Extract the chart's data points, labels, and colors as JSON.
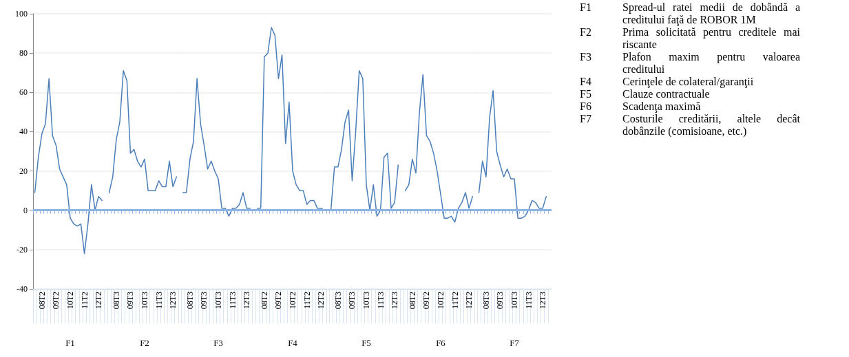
{
  "chart_data": [
    {
      "type": "line",
      "xlabel": "F1",
      "categories": [
        null,
        null,
        "08T2",
        null,
        null,
        null,
        "09T2",
        null,
        null,
        null,
        "10T2",
        null,
        null,
        null,
        "11T2",
        null,
        null,
        null,
        "12T2",
        null,
        null
      ],
      "values": [
        9,
        27,
        39,
        44,
        67,
        38,
        33,
        21,
        17,
        13,
        -4,
        -7,
        -8,
        -7,
        -22,
        -7,
        13,
        0,
        7,
        5,
        null
      ],
      "color": "#4a7ebb",
      "ylim": [
        -40,
        100
      ],
      "yticks": [
        -40,
        -20,
        0,
        20,
        40,
        60,
        80,
        100
      ],
      "grid": "y",
      "ref_lines": [
        {
          "axis": "y",
          "value": 0,
          "color": "#8eb4e3"
        }
      ]
    },
    {
      "type": "line",
      "xlabel": "F2",
      "categories": [
        null,
        null,
        "08T3",
        null,
        null,
        null,
        "09T3",
        null,
        null,
        null,
        "10T3",
        null,
        null,
        null,
        "11T3",
        null,
        null,
        null,
        "12T3",
        null,
        null
      ],
      "values": [
        9,
        17,
        36,
        45,
        71,
        66,
        29,
        31,
        25,
        22,
        26,
        10,
        10,
        10,
        15,
        12,
        12,
        25,
        12,
        17,
        null
      ],
      "color": "#4a7ebb",
      "ylim": [
        -40,
        100
      ],
      "yticks": [
        -40,
        -20,
        0,
        20,
        40,
        60,
        80,
        100
      ],
      "grid": "y",
      "ref_lines": [
        {
          "axis": "y",
          "value": 0,
          "color": "#8eb4e3"
        }
      ],
      "tick_labels": "x"
    },
    {
      "type": "line",
      "xlabel": "F3",
      "categories": [
        null,
        null,
        "08T3",
        null,
        null,
        null,
        "09T3",
        null,
        null,
        null,
        "10T3",
        null,
        null,
        null,
        "11T3",
        null,
        null,
        null,
        "12T3",
        null,
        null
      ],
      "values": [
        9,
        9,
        26,
        35,
        67,
        44,
        33,
        21,
        25,
        20,
        16,
        1,
        1,
        -3,
        1,
        1,
        3,
        9,
        1,
        1,
        null
      ],
      "color": "#4a7ebb",
      "ylim": [
        -40,
        100
      ],
      "yticks": [
        -40,
        -20,
        0,
        20,
        40,
        60,
        80,
        100
      ],
      "grid": "y",
      "ref_lines": [
        {
          "axis": "y",
          "value": 0,
          "color": "#8eb4e3"
        }
      ],
      "tick_labels": "x"
    },
    {
      "type": "line",
      "xlabel": "F4",
      "categories": [
        null,
        null,
        "08T2",
        null,
        null,
        null,
        "09T2",
        null,
        null,
        null,
        "10T2",
        null,
        null,
        null,
        "11T2",
        null,
        null,
        null,
        "12T2",
        null,
        null
      ],
      "values": [
        1,
        1,
        78,
        80,
        93,
        89,
        67,
        79,
        34,
        55,
        20,
        13,
        10,
        10,
        3,
        5,
        5,
        1,
        1,
        0,
        null
      ],
      "color": "#4a7ebb",
      "ylim": [
        -40,
        100
      ],
      "yticks": [
        -40,
        -20,
        0,
        20,
        40,
        60,
        80,
        100
      ],
      "grid": "y",
      "ref_lines": [
        {
          "axis": "y",
          "value": 0,
          "color": "#8eb4e3"
        }
      ],
      "tick_labels": "x"
    },
    {
      "type": "line",
      "xlabel": "F5",
      "categories": [
        null,
        null,
        "08T3",
        null,
        null,
        null,
        "09T3",
        null,
        null,
        null,
        "10T3",
        null,
        null,
        null,
        "11T3",
        null,
        null,
        null,
        "12T3",
        null,
        null
      ],
      "values": [
        0,
        22,
        22,
        31,
        45,
        51,
        15,
        40,
        71,
        67,
        13,
        0,
        13,
        -3,
        0,
        27,
        29,
        1,
        4,
        23,
        null
      ],
      "color": "#4a7ebb",
      "ylim": [
        -40,
        100
      ],
      "yticks": [
        -40,
        -20,
        0,
        20,
        40,
        60,
        80,
        100
      ],
      "grid": "y",
      "ref_lines": [
        {
          "axis": "y",
          "value": 0,
          "color": "#8eb4e3"
        }
      ],
      "tick_labels": "x"
    },
    {
      "type": "line",
      "xlabel": "F6",
      "categories": [
        null,
        null,
        "08T2",
        null,
        null,
        null,
        "09T2",
        null,
        null,
        null,
        "10T2",
        null,
        null,
        null,
        "11T2",
        null,
        null,
        null,
        "12T2",
        null,
        null
      ],
      "values": [
        10,
        13,
        26,
        19,
        50,
        69,
        38,
        35,
        29,
        20,
        8,
        -4,
        -4,
        -3,
        -6,
        1,
        4,
        9,
        1,
        7,
        null
      ],
      "color": "#4a7ebb",
      "ylim": [
        -40,
        100
      ],
      "yticks": [
        -40,
        -20,
        0,
        20,
        40,
        60,
        80,
        100
      ],
      "grid": "y",
      "ref_lines": [
        {
          "axis": "y",
          "value": 0,
          "color": "#8eb4e3"
        }
      ],
      "tick_labels": "x"
    },
    {
      "type": "line",
      "xlabel": "F7",
      "categories": [
        null,
        null,
        "08T3",
        null,
        null,
        null,
        "09T3",
        null,
        null,
        null,
        "10T3",
        null,
        null,
        null,
        "11T3",
        null,
        null,
        null,
        "12T3",
        null,
        null
      ],
      "values": [
        9,
        25,
        17,
        47,
        61,
        30,
        23,
        17,
        21,
        16,
        16,
        -4,
        -4,
        -3,
        0,
        5,
        4,
        1,
        1,
        7,
        null
      ],
      "color": "#4a7ebb",
      "ylim": [
        -40,
        100
      ],
      "yticks": [
        -40,
        -20,
        0,
        20,
        40,
        60,
        80,
        100
      ],
      "grid": "y",
      "ref_lines": [
        {
          "axis": "y",
          "value": 0,
          "color": "#8eb4e3"
        }
      ],
      "tick_labels": "x"
    },
    {
      "type": "other",
      "annotations": [
        "F1",
        "Spread-ul ratei medii de dobândă a creditului faţă de ROBOR 1M",
        "F2",
        "Prima solicitată pentru creditele mai riscante",
        "F3",
        "Plafon maxim pentru valoarea creditului",
        "F4",
        "Cerinţele de colateral/garanţii",
        "F5",
        "Clauze contractuale",
        "F6",
        "Scadenţa maximă",
        "F7",
        "Costurile creditării, altele decât dobânzile (comisioane, etc.)"
      ]
    }
  ]
}
